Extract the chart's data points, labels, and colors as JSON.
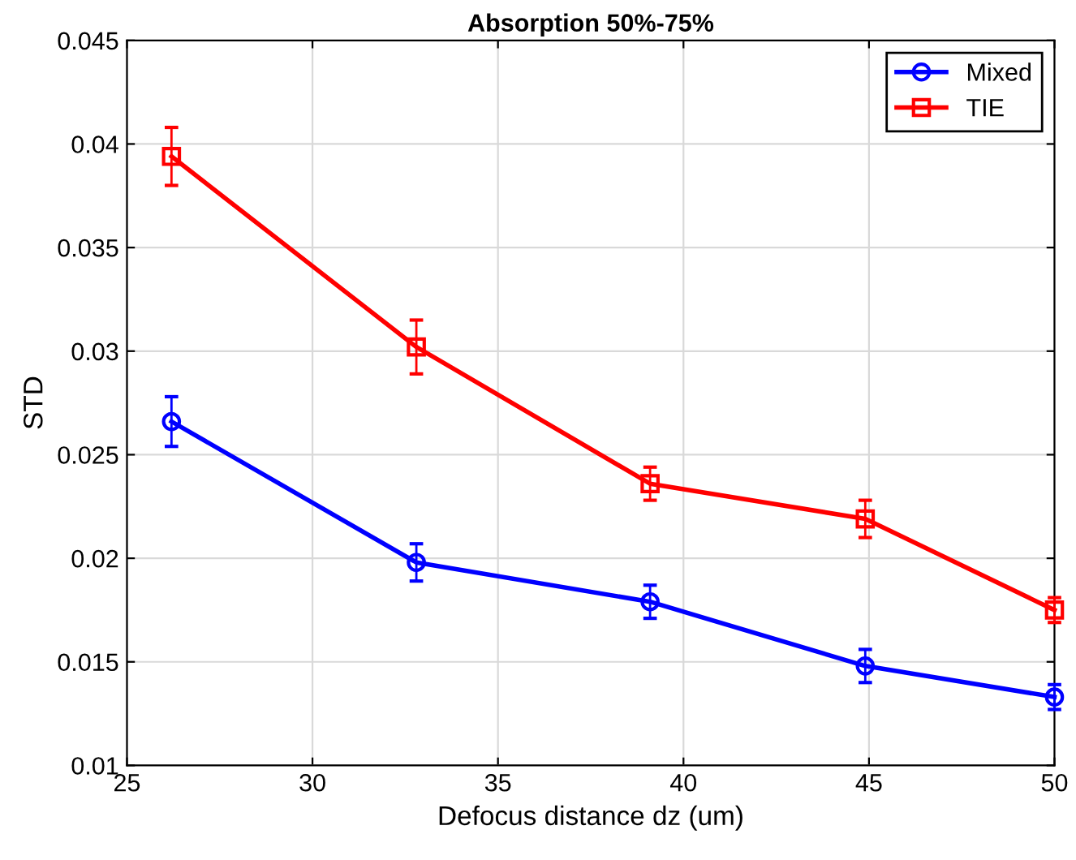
{
  "chart_data": {
    "type": "line",
    "title": "Absorption 50%-75%",
    "xlabel": "Defocus distance dz (um)",
    "ylabel": "STD",
    "x": [
      26.2,
      32.8,
      39.1,
      44.9,
      50
    ],
    "series": [
      {
        "name": "Mixed",
        "color": "#0000ff",
        "marker": "circle",
        "values": [
          0.0266,
          0.0198,
          0.0179,
          0.0148,
          0.0133
        ],
        "errors": [
          0.0012,
          0.0009,
          0.0008,
          0.0008,
          0.0006
        ]
      },
      {
        "name": "TIE",
        "color": "#ff0000",
        "marker": "square",
        "values": [
          0.0394,
          0.0302,
          0.0236,
          0.0219,
          0.0175
        ],
        "errors": [
          0.0014,
          0.0013,
          0.0008,
          0.0009,
          0.0006
        ]
      }
    ],
    "xlim": [
      25,
      50
    ],
    "xticks": [
      25,
      30,
      35,
      40,
      45,
      50
    ],
    "ylim": [
      0.01,
      0.045
    ],
    "yticks": [
      {
        "value": 0.01,
        "label": "0.01"
      },
      {
        "value": 0.015,
        "label": "0.015"
      },
      {
        "value": 0.02,
        "label": "0.02"
      },
      {
        "value": 0.025,
        "label": "0.025"
      },
      {
        "value": 0.03,
        "label": "0.03"
      },
      {
        "value": 0.035,
        "label": "0.035"
      },
      {
        "value": 0.04,
        "label": "0.04"
      },
      {
        "value": 0.045,
        "label": "0.045"
      }
    ],
    "grid": true,
    "legend": "top right",
    "line_style": "solid"
  }
}
